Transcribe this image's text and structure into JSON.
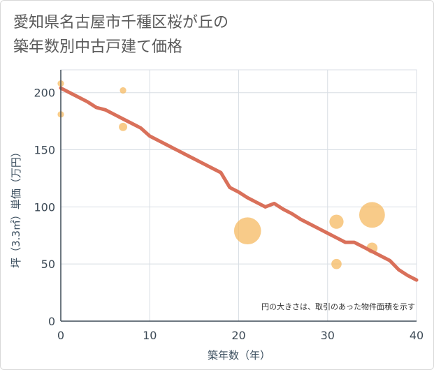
{
  "title": {
    "line1": "愛知県名古屋市千種区桜が丘の",
    "line2": "築年数別中古戸建て価格"
  },
  "chart_data": {
    "type": "scatter",
    "title": "愛知県名古屋市千種区桜が丘の築年数別中古戸建て価格",
    "xlabel": "築年数（年）",
    "ylabel": "坪（3.3㎡）単価（万円）",
    "xlim": [
      0,
      40
    ],
    "ylim": [
      0,
      220
    ],
    "xticks": [
      0,
      10,
      20,
      30,
      40
    ],
    "yticks": [
      0,
      50,
      100,
      150,
      200
    ],
    "grid": true,
    "note": "円の大きさは、取引のあった物件面積を示す",
    "colors": {
      "bubble": "#f5b961",
      "line": "#d9705a",
      "grid": "#d8dee4",
      "axis": "#3d4a56"
    },
    "points": [
      {
        "x": 0,
        "y": 208,
        "size": 1
      },
      {
        "x": 0,
        "y": 181,
        "size": 1
      },
      {
        "x": 7,
        "y": 202,
        "size": 1
      },
      {
        "x": 7,
        "y": 170,
        "size": 1.3
      },
      {
        "x": 21,
        "y": 79,
        "size": 4.2
      },
      {
        "x": 31,
        "y": 87,
        "size": 2.2
      },
      {
        "x": 31,
        "y": 50,
        "size": 1.6
      },
      {
        "x": 35,
        "y": 93,
        "size": 4
      },
      {
        "x": 35,
        "y": 64,
        "size": 1.7
      }
    ],
    "trend": {
      "x": [
        0,
        1,
        2,
        3,
        4,
        5,
        6,
        7,
        8,
        9,
        10,
        11,
        12,
        13,
        14,
        15,
        16,
        17,
        18,
        19,
        20,
        21,
        22,
        23,
        24,
        25,
        26,
        27,
        28,
        29,
        30,
        31,
        32,
        33,
        34,
        35,
        36,
        37,
        38,
        39,
        40
      ],
      "y": [
        204,
        200,
        196,
        192,
        187,
        185,
        181,
        177,
        173,
        169,
        162,
        158,
        154,
        150,
        146,
        142,
        138,
        134,
        130,
        117,
        113,
        108,
        104,
        100,
        103,
        98,
        94,
        89,
        85,
        81,
        77,
        73,
        69,
        69,
        65,
        61,
        57,
        53,
        45,
        40,
        36
      ]
    }
  }
}
